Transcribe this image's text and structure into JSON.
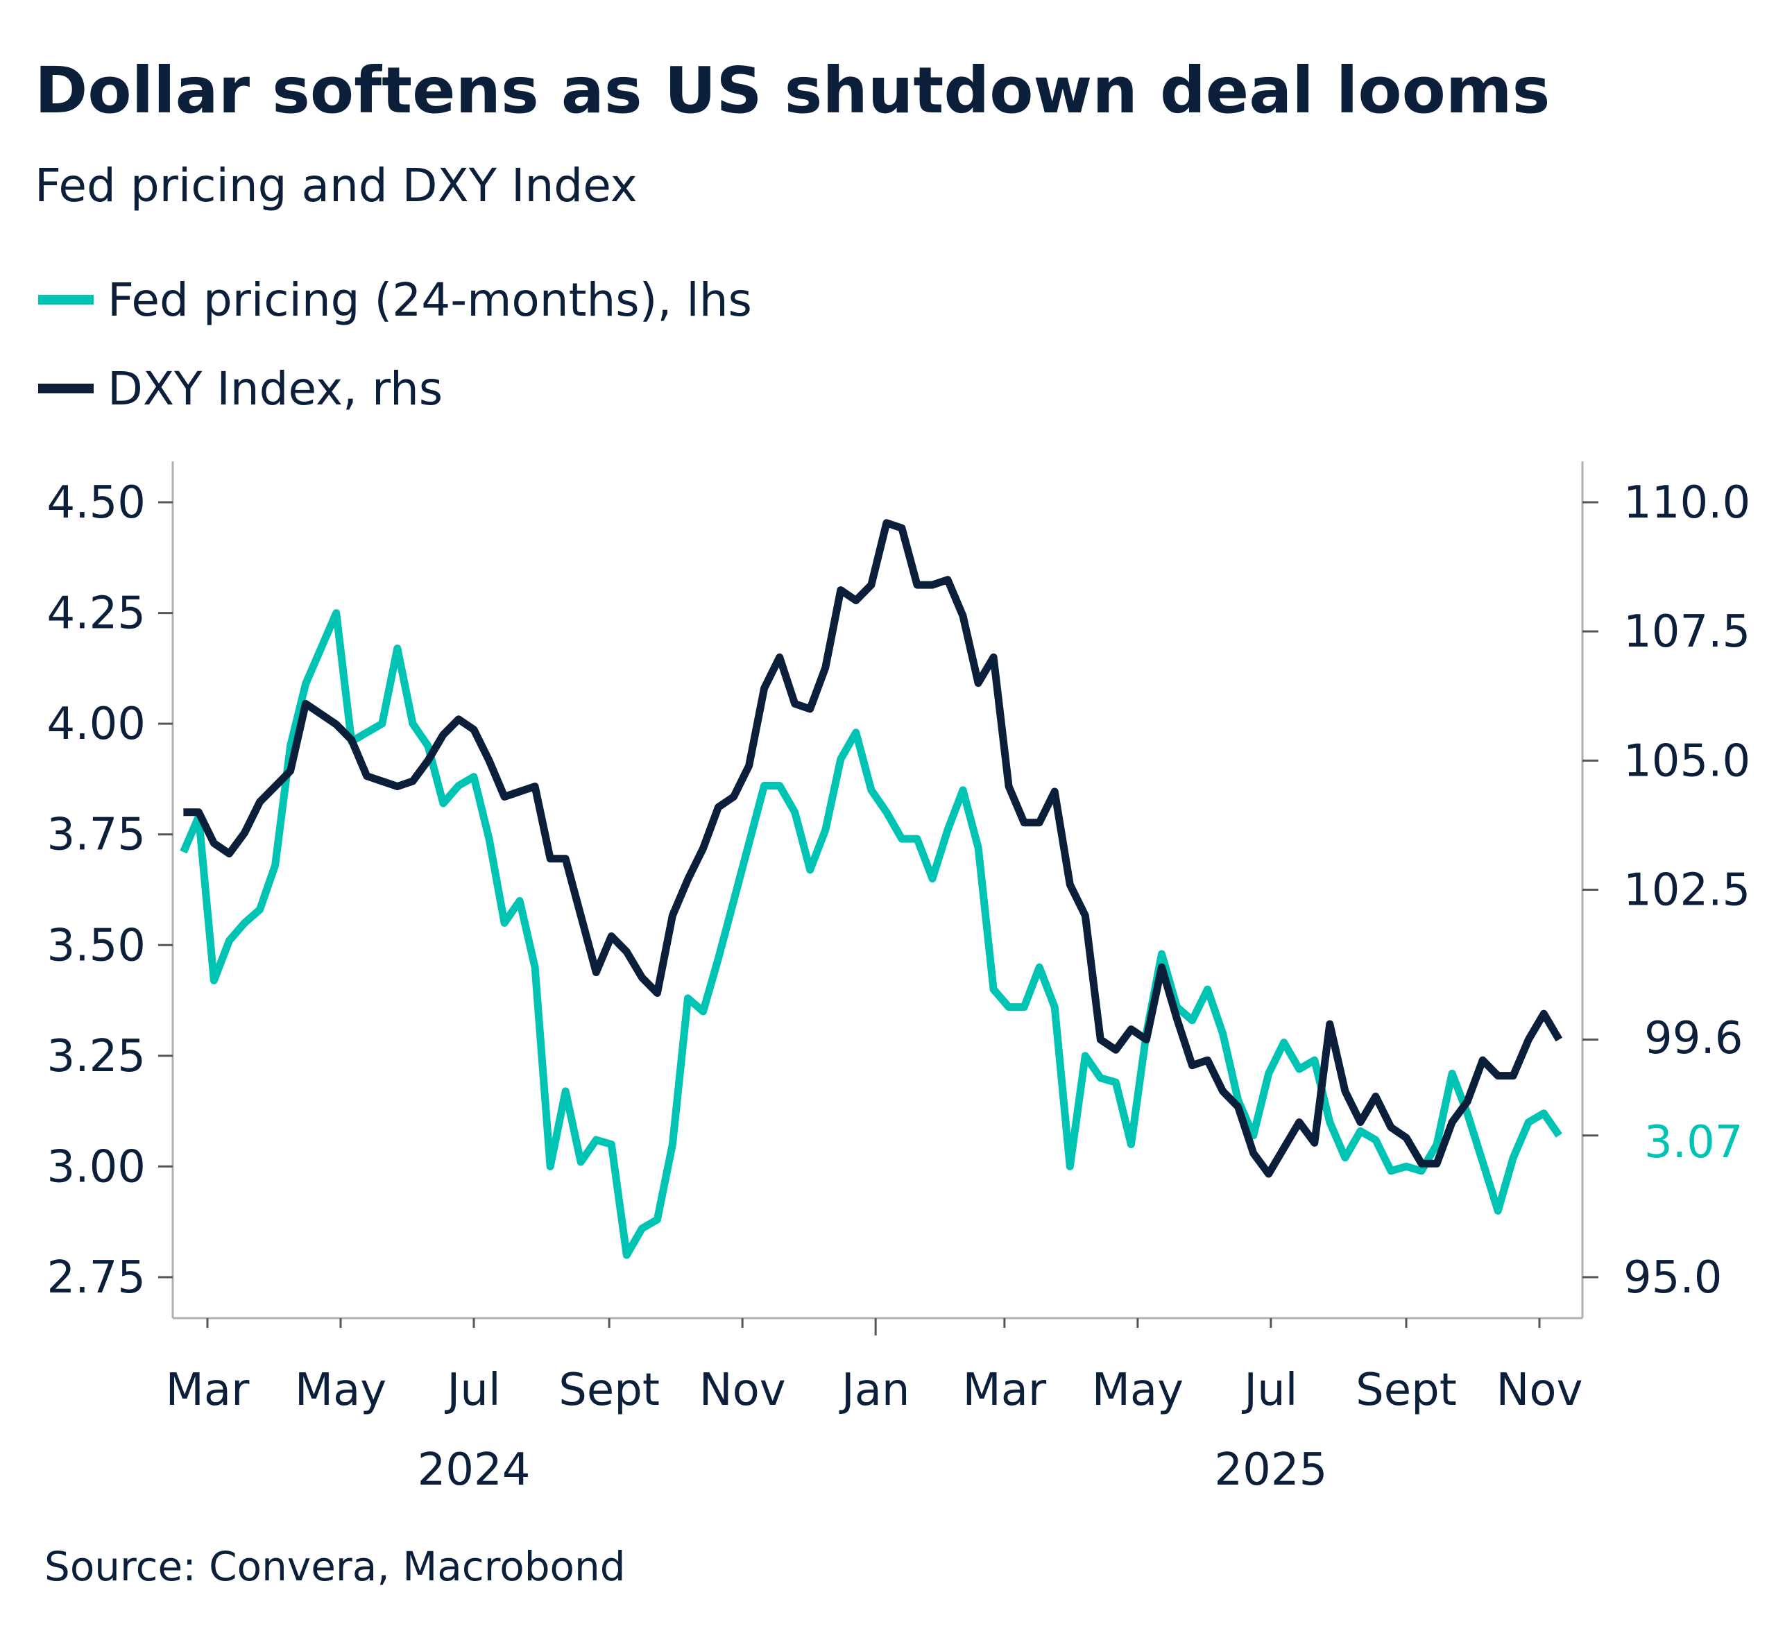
{
  "chart_data": {
    "type": "line",
    "title": "Dollar softens as US shutdown deal looms",
    "subtitle": "Fed pricing and DXY Index",
    "source": "Source: Convera, Macrobond",
    "colors": {
      "fed": "#00c4b3",
      "dxy": "#0b1f3a",
      "text": "#0b1f3a",
      "axis": "#b0b0b0"
    },
    "legend_placement": "top-left",
    "grid": false,
    "left_axis": {
      "ylim": [
        2.75,
        4.5
      ],
      "ticks": [
        "4.50",
        "4.25",
        "4.00",
        "3.75",
        "3.50",
        "3.25",
        "3.00",
        "2.75"
      ],
      "tick_values": [
        4.5,
        4.25,
        4.0,
        3.75,
        3.5,
        3.25,
        3.0,
        2.75
      ]
    },
    "right_axis": {
      "ylim": [
        95.0,
        110.0
      ],
      "ticks": [
        "110.0",
        "107.5",
        "105.0",
        "102.5",
        "95.0"
      ],
      "tick_values": [
        110.0,
        107.5,
        105.0,
        102.5,
        95.0
      ]
    },
    "last_value_labels": {
      "dxy": "99.6",
      "fed": "3.07"
    },
    "x_ticks": [
      {
        "date": "2024-03-01",
        "label": "Mar"
      },
      {
        "date": "2024-05-01",
        "label": "May"
      },
      {
        "date": "2024-07-01",
        "label": "Jul"
      },
      {
        "date": "2024-09-01",
        "label": "Sept"
      },
      {
        "date": "2024-11-01",
        "label": "Nov"
      },
      {
        "date": "2025-01-01",
        "label": "Jan"
      },
      {
        "date": "2025-03-01",
        "label": "Mar"
      },
      {
        "date": "2025-05-01",
        "label": "May"
      },
      {
        "date": "2025-07-01",
        "label": "Jul"
      },
      {
        "date": "2025-09-01",
        "label": "Sept"
      },
      {
        "date": "2025-11-01",
        "label": "Nov"
      }
    ],
    "year_labels": [
      {
        "label": "2024",
        "date": "2024-07-01"
      },
      {
        "label": "2025",
        "date": "2025-07-01"
      }
    ],
    "x": [
      "2024-02-19",
      "2024-02-26",
      "2024-03-04",
      "2024-03-11",
      "2024-03-18",
      "2024-03-25",
      "2024-04-01",
      "2024-04-08",
      "2024-04-15",
      "2024-04-22",
      "2024-04-29",
      "2024-05-06",
      "2024-05-13",
      "2024-05-20",
      "2024-05-27",
      "2024-06-03",
      "2024-06-10",
      "2024-06-17",
      "2024-06-24",
      "2024-07-01",
      "2024-07-08",
      "2024-07-15",
      "2024-07-22",
      "2024-07-29",
      "2024-08-05",
      "2024-08-12",
      "2024-08-19",
      "2024-08-26",
      "2024-09-02",
      "2024-09-09",
      "2024-09-16",
      "2024-09-23",
      "2024-09-30",
      "2024-10-07",
      "2024-10-14",
      "2024-10-21",
      "2024-10-28",
      "2024-11-04",
      "2024-11-11",
      "2024-11-18",
      "2024-11-25",
      "2024-12-02",
      "2024-12-09",
      "2024-12-16",
      "2024-12-23",
      "2024-12-30",
      "2025-01-06",
      "2025-01-13",
      "2025-01-20",
      "2025-01-27",
      "2025-02-03",
      "2025-02-10",
      "2025-02-17",
      "2025-02-24",
      "2025-03-03",
      "2025-03-10",
      "2025-03-17",
      "2025-03-24",
      "2025-03-31",
      "2025-04-07",
      "2025-04-14",
      "2025-04-21",
      "2025-04-28",
      "2025-05-05",
      "2025-05-12",
      "2025-05-19",
      "2025-05-26",
      "2025-06-02",
      "2025-06-09",
      "2025-06-16",
      "2025-06-23",
      "2025-06-30",
      "2025-07-07",
      "2025-07-14",
      "2025-07-21",
      "2025-07-28",
      "2025-08-04",
      "2025-08-11",
      "2025-08-18",
      "2025-08-25",
      "2025-09-01",
      "2025-09-08",
      "2025-09-15",
      "2025-09-22",
      "2025-09-29",
      "2025-10-06",
      "2025-10-13",
      "2025-10-20",
      "2025-10-27",
      "2025-11-03",
      "2025-11-10"
    ],
    "series": [
      {
        "name": "Fed pricing (24-months), lhs",
        "axis": "left",
        "values": [
          3.71,
          3.79,
          3.42,
          3.51,
          3.55,
          3.58,
          3.68,
          3.95,
          4.09,
          4.17,
          4.25,
          3.96,
          3.98,
          4.0,
          4.17,
          4.0,
          3.95,
          3.82,
          3.86,
          3.88,
          3.74,
          3.55,
          3.6,
          3.45,
          3.0,
          3.17,
          3.01,
          3.06,
          3.05,
          2.8,
          2.86,
          2.88,
          3.05,
          3.38,
          3.35,
          3.47,
          3.6,
          3.73,
          3.86,
          3.86,
          3.8,
          3.67,
          3.76,
          3.92,
          3.98,
          3.85,
          3.8,
          3.74,
          3.74,
          3.65,
          3.76,
          3.85,
          3.72,
          3.4,
          3.36,
          3.36,
          3.45,
          3.36,
          3.0,
          3.25,
          3.2,
          3.19,
          3.05,
          3.3,
          3.48,
          3.36,
          3.33,
          3.4,
          3.3,
          3.15,
          3.07,
          3.21,
          3.28,
          3.22,
          3.24,
          3.1,
          3.02,
          3.08,
          3.06,
          2.99,
          3.0,
          2.99,
          3.05,
          3.21,
          3.12,
          3.01,
          2.9,
          3.02,
          3.1,
          3.12,
          3.07
        ]
      },
      {
        "name": "DXY Index, rhs",
        "axis": "right",
        "values": [
          104.0,
          104.0,
          103.4,
          103.2,
          103.6,
          104.2,
          104.5,
          104.8,
          106.1,
          105.9,
          105.7,
          105.4,
          104.7,
          104.6,
          104.5,
          104.6,
          105.0,
          105.5,
          105.8,
          105.6,
          105.0,
          104.3,
          104.4,
          104.5,
          103.1,
          103.1,
          102.0,
          100.9,
          101.6,
          101.3,
          100.8,
          100.5,
          102.0,
          102.7,
          103.3,
          104.1,
          104.3,
          104.9,
          106.4,
          107.0,
          106.1,
          106.0,
          106.8,
          108.3,
          108.1,
          108.4,
          109.6,
          109.5,
          108.4,
          108.4,
          108.5,
          107.8,
          106.5,
          107.0,
          104.5,
          103.8,
          103.8,
          104.4,
          102.6,
          102.0,
          99.6,
          99.4,
          99.8,
          99.6,
          101.0,
          100.0,
          99.1,
          99.2,
          98.6,
          98.3,
          97.4,
          97.0,
          97.5,
          98.0,
          97.6,
          99.9,
          98.6,
          98.0,
          98.5,
          97.9,
          97.7,
          97.2,
          97.2,
          98.0,
          98.4,
          99.2,
          98.9,
          98.9,
          99.6,
          100.1,
          99.6
        ]
      }
    ]
  }
}
